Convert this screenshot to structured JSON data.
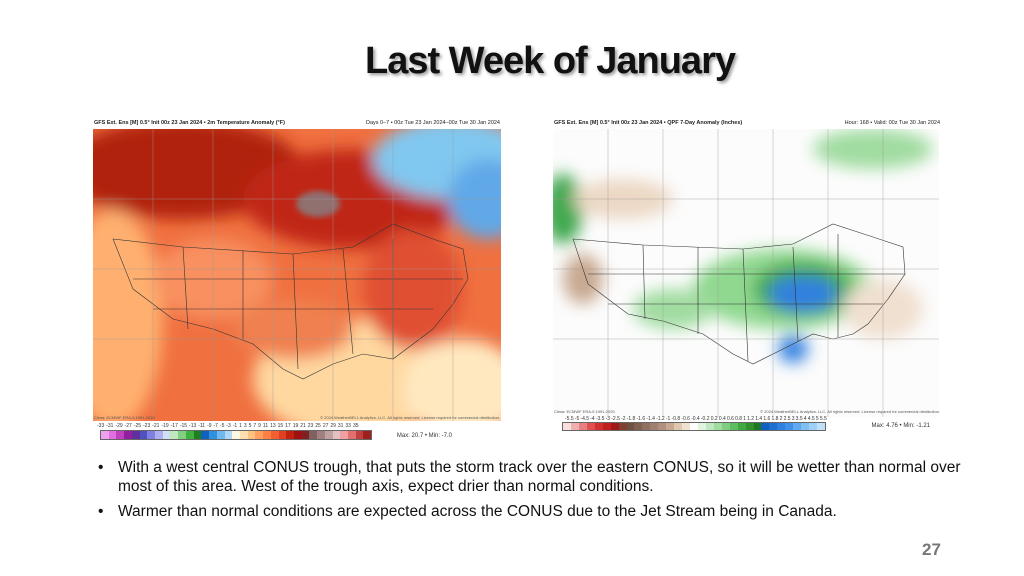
{
  "slide": {
    "title": "Last Week of January",
    "page_number": "27"
  },
  "left_map": {
    "header_left": "GFS Ext. Ens [M] 0.5° Init 00z 23 Jan 2024 • 2m Temperature Anomaly (°F)",
    "header_right": "Days 0–7 • 00z Tue 23 Jan 2024–00z Tue 30 Jan 2024",
    "clim": "Clima: ECMWF ERA-5 1991-2020",
    "copyright": "© 2024 WeatherBELL Analytics, LLC. All rights reserved. License required for commercial distribution.",
    "colorbar_ticks": [
      "-33",
      "-31",
      "-29",
      "-27",
      "-25",
      "-23",
      "-21",
      "-19",
      "-17",
      "-15",
      "-13",
      "-11",
      "-9",
      "-7",
      "-5",
      "-3",
      "-1",
      "1",
      "3",
      "5",
      "7",
      "9",
      "11",
      "13",
      "15",
      "17",
      "19",
      "21",
      "23",
      "25",
      "27",
      "29",
      "31",
      "33",
      "35"
    ],
    "colorbar_colors": [
      "#f0a0f0",
      "#e070e0",
      "#c040c0",
      "#9020a0",
      "#6030a0",
      "#5050c0",
      "#8080e0",
      "#b0b0f0",
      "#d0e0f0",
      "#c0e8c0",
      "#80d080",
      "#40b040",
      "#208020",
      "#1060c0",
      "#3090e0",
      "#70b8f0",
      "#b0d8f8",
      "#fff8e0",
      "#ffe0b0",
      "#ffc080",
      "#ffa060",
      "#ff8040",
      "#f06030",
      "#e04020",
      "#c02010",
      "#a01010",
      "#802020",
      "#806060",
      "#a08080",
      "#c0a0a0",
      "#e0c0c0",
      "#f0a0a0",
      "#e07070",
      "#c04040",
      "#a02020"
    ],
    "max_min": "Max: 20.7 • Min: -7.0"
  },
  "right_map": {
    "header_left": "GFS Ext. Ens [M] 0.5° Init 00z 23 Jan 2024 • QPF 7-Day Anomaly (Inches)",
    "header_right": "Hour: 168 • Valid: 00z Tue 30 Jan 2024",
    "clim": "Clima: ECMWF ERA-5 1991-2020",
    "copyright": "© 2024 WeatherBELL Analytics, LLC. All rights reserved. License required for commercial distribution.",
    "colorbar_ticks": [
      "-5.5",
      "-5",
      "-4.5",
      "-4",
      "-3.5",
      "-3",
      "-2.5",
      "-2",
      "-1.8",
      "-1.6",
      "-1.4",
      "-1.2",
      "-1",
      "-0.8",
      "-0.6",
      "-0.4",
      "-0.2",
      "0.2",
      "0.4",
      "0.6",
      "0.8",
      "1",
      "1.2",
      "1.4",
      "1.6",
      "1.8",
      "2",
      "2.5",
      "3",
      "3.5",
      "4",
      "4.5",
      "5",
      "5.5"
    ],
    "colorbar_colors": [
      "#f8e0e0",
      "#f0b0b0",
      "#e88080",
      "#e05050",
      "#d03030",
      "#c02020",
      "#a01818",
      "#804030",
      "#705040",
      "#806050",
      "#907060",
      "#a08070",
      "#b09080",
      "#c8a890",
      "#e0c8b0",
      "#f0e0d0",
      "#ffffff",
      "#e0f4e0",
      "#c0e8c0",
      "#a0dca0",
      "#80cc80",
      "#60bc60",
      "#40a840",
      "#309030",
      "#207820",
      "#1060c0",
      "#2070d0",
      "#3080e0",
      "#4090e8",
      "#60a8f0",
      "#80c0f0",
      "#a0d0f8",
      "#c0e0fc"
    ],
    "max_min": "Max: 4.76 • Min: -1.21"
  },
  "bullets": [
    "With a west central CONUS trough, that puts the storm track over the eastern CONUS, so it will be wetter than normal over most of this area.  West of the trough axis, expect drier than normal conditions.",
    "Warmer than normal conditions are expected across the CONUS due to the Jet Stream being in Canada."
  ]
}
